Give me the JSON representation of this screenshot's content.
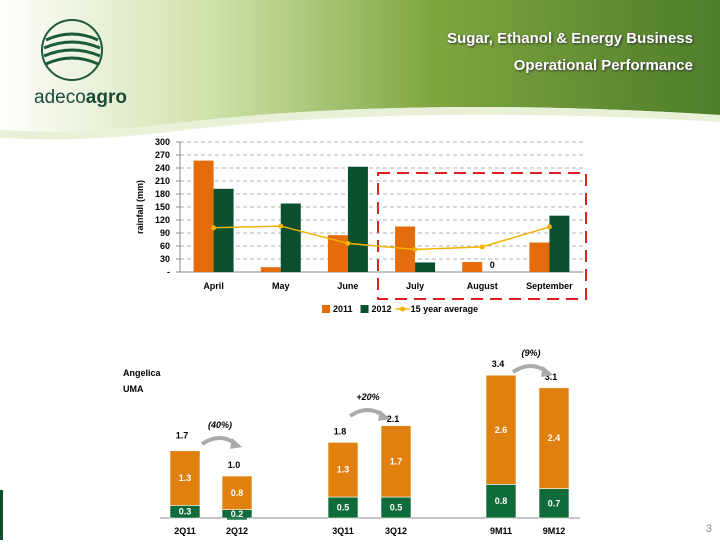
{
  "header": {
    "title_lines": [
      "Sugar, Ethanol & Energy Business",
      "Operational Performance"
    ],
    "logo_text": [
      "adeco",
      "agro"
    ],
    "page_number": "3"
  },
  "chart_data": [
    {
      "type": "bar",
      "y_label": "rainfall (mm)",
      "categories": [
        "April",
        "May",
        "June",
        "July",
        "August",
        "September"
      ],
      "series": [
        {
          "name": "2011",
          "color": "#e46c0a",
          "values": [
            257,
            11,
            85,
            105,
            23,
            68
          ]
        },
        {
          "name": "2012",
          "color": "#0b4f2e",
          "values": [
            192,
            158,
            243,
            22,
            0,
            130
          ]
        },
        {
          "name": "15 year average",
          "type": "line",
          "color": "#f2b300",
          "values": [
            102,
            106,
            66,
            52,
            58,
            104
          ]
        }
      ],
      "ylim": [
        0,
        300
      ],
      "yticks": [
        {
          "value": 0,
          "label": "-"
        },
        30,
        60,
        90,
        120,
        150,
        180,
        210,
        240,
        270,
        300
      ],
      "grid": true,
      "legend": "bottom"
    },
    {
      "type": "stacked-bar",
      "categories": [
        "2Q11",
        "2Q12",
        "3Q11",
        "3Q12",
        "9M11",
        "9M12"
      ],
      "series": [
        {
          "name": "Angelica",
          "color": "#0f6b3a",
          "values": [
            0.3,
            0.2,
            0.5,
            0.5,
            0.8,
            0.7
          ]
        },
        {
          "name": "UMA",
          "color": "#e0800f",
          "values": [
            1.3,
            0.8,
            1.3,
            1.7,
            2.6,
            2.4
          ]
        }
      ],
      "totals": [
        1.7,
        1.0,
        1.8,
        2.1,
        3.4,
        3.1
      ],
      "total_labels": [
        "1.7",
        "1.0",
        "1.8",
        "2.1",
        "3.4",
        "3.1"
      ],
      "annotations": [
        "(40%)",
        "+20%",
        "(9%)"
      ],
      "legend": "left"
    }
  ]
}
